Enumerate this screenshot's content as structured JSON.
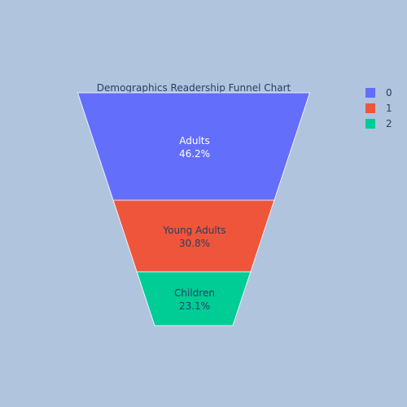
{
  "chart_data": {
    "type": "funnel",
    "title": "Demographics Readership Funnel Chart",
    "background": "#b0c4de",
    "segments": [
      {
        "label": "Adults",
        "percent_text": "46.2%",
        "value": 46.2,
        "color": "#636efa",
        "text_color": "#ffffff",
        "legend": "0"
      },
      {
        "label": "Young Adults",
        "percent_text": "30.8%",
        "value": 30.8,
        "color": "#ef553b",
        "text_color": "#2a3f5f",
        "legend": "1"
      },
      {
        "label": "Children",
        "percent_text": "23.1%",
        "value": 23.1,
        "color": "#00cc96",
        "text_color": "#2a3f5f",
        "legend": "2"
      }
    ],
    "legend_position": "top-right"
  }
}
